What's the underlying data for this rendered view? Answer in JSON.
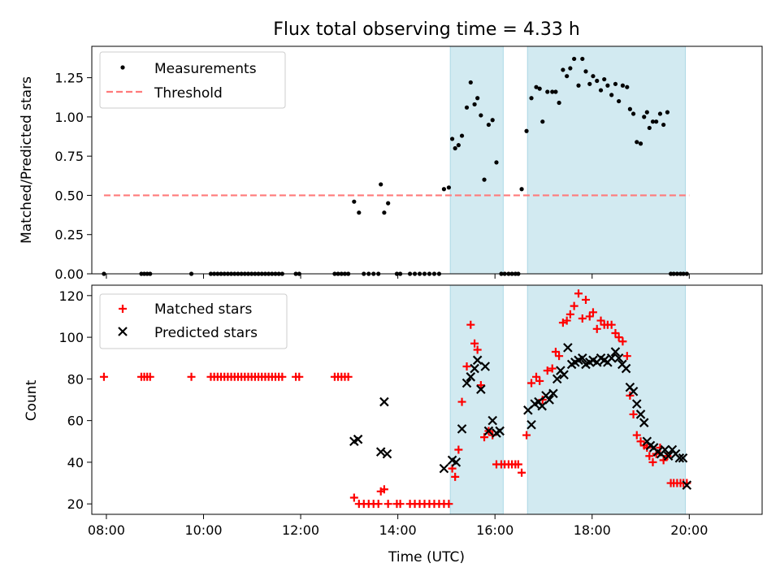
{
  "title": "Flux total observing time = 4.33 h",
  "colors": {
    "shade": "#add8e6",
    "measurement": "#000000",
    "threshold": "#ff7b7b",
    "matched": "#ff0000",
    "predicted": "#000000"
  },
  "chart_data": [
    {
      "type": "scatter",
      "panel": "top",
      "ylabel": "Matched/Predicted stars",
      "xlim": [
        7.7,
        21.5
      ],
      "ylim": [
        0,
        1.45
      ],
      "y_ticks": [
        0.0,
        0.25,
        0.5,
        0.75,
        1.0,
        1.25
      ],
      "y_tick_labels": [
        "0.00",
        "0.25",
        "0.50",
        "0.75",
        "1.00",
        "1.25"
      ],
      "x_ticks": [
        8,
        10,
        12,
        14,
        16,
        18,
        20
      ],
      "x_tick_labels": [
        "08:00",
        "10:00",
        "12:00",
        "14:00",
        "16:00",
        "18:00",
        "20:00"
      ],
      "show_x_tick_labels": false,
      "shaded_intervals": [
        [
          15.08,
          16.17
        ],
        [
          16.67,
          19.92
        ]
      ],
      "legend_position": "top-left",
      "series": [
        {
          "name": "Measurements",
          "kind": "points",
          "color": "#000000",
          "x": [
            7.95,
            8.72,
            8.78,
            8.84,
            8.9,
            9.75,
            10.15,
            10.22,
            10.29,
            10.36,
            10.43,
            10.5,
            10.57,
            10.64,
            10.71,
            10.78,
            10.85,
            10.92,
            10.99,
            11.06,
            11.13,
            11.2,
            11.27,
            11.34,
            11.41,
            11.48,
            11.55,
            11.62,
            11.9,
            11.97,
            12.7,
            12.77,
            12.84,
            12.91,
            12.98,
            13.1,
            13.2,
            13.3,
            13.4,
            13.5,
            13.6,
            13.65,
            13.72,
            13.8,
            13.98,
            14.05,
            14.25,
            14.35,
            14.45,
            14.55,
            14.65,
            14.75,
            14.85,
            14.95,
            15.05,
            15.12,
            15.18,
            15.25,
            15.32,
            15.42,
            15.5,
            15.58,
            15.64,
            15.71,
            15.78,
            15.87,
            15.95,
            16.03,
            16.13,
            16.2,
            16.28,
            16.35,
            16.42,
            16.48,
            16.55,
            16.65,
            16.75,
            16.85,
            16.92,
            16.98,
            17.08,
            17.18,
            17.25,
            17.32,
            17.4,
            17.48,
            17.55,
            17.63,
            17.72,
            17.8,
            17.87,
            17.95,
            18.02,
            18.1,
            18.18,
            18.25,
            18.32,
            18.4,
            18.48,
            18.55,
            18.63,
            18.72,
            18.78,
            18.85,
            18.92,
            19.0,
            19.07,
            19.13,
            19.18,
            19.25,
            19.32,
            19.4,
            19.47,
            19.55,
            19.62,
            19.68,
            19.75,
            19.82,
            19.88,
            19.95
          ],
          "y": [
            0,
            0,
            0,
            0,
            0,
            0,
            0,
            0,
            0,
            0,
            0,
            0,
            0,
            0,
            0,
            0,
            0,
            0,
            0,
            0,
            0,
            0,
            0,
            0,
            0,
            0,
            0,
            0,
            0,
            0,
            0,
            0,
            0,
            0,
            0,
            0.46,
            0.39,
            0,
            0,
            0,
            0,
            0.57,
            0.39,
            0.45,
            0,
            0,
            0,
            0,
            0,
            0,
            0,
            0,
            0,
            0.54,
            0.55,
            0.86,
            0.8,
            0.82,
            0.88,
            1.06,
            1.22,
            1.08,
            1.12,
            1.01,
            0.6,
            0.95,
            0.98,
            0.71,
            0,
            0,
            0,
            0,
            0,
            0,
            0.54,
            0.91,
            1.12,
            1.19,
            1.18,
            0.97,
            1.16,
            1.16,
            1.16,
            1.09,
            1.3,
            1.26,
            1.31,
            1.37,
            1.2,
            1.37,
            1.29,
            1.21,
            1.26,
            1.23,
            1.17,
            1.24,
            1.2,
            1.14,
            1.21,
            1.1,
            1.2,
            1.19,
            1.05,
            1.02,
            0.84,
            0.83,
            1.0,
            1.03,
            0.93,
            0.97,
            0.97,
            1.02,
            0.95,
            1.03,
            0,
            0,
            0,
            0,
            0,
            0
          ],
          "note_count": 120
        },
        {
          "name": "Threshold",
          "kind": "dashed-line",
          "color": "#ff7b7b",
          "x": [
            7.95,
            20.0
          ],
          "y": [
            0.5,
            0.5
          ]
        }
      ]
    },
    {
      "type": "scatter",
      "panel": "bottom",
      "xlabel": "Time (UTC)",
      "ylabel": "Count",
      "xlim": [
        7.7,
        21.5
      ],
      "ylim": [
        15,
        125
      ],
      "y_ticks": [
        20,
        40,
        60,
        80,
        100,
        120
      ],
      "y_tick_labels": [
        "20",
        "40",
        "60",
        "80",
        "100",
        "120"
      ],
      "x_ticks": [
        8,
        10,
        12,
        14,
        16,
        18,
        20
      ],
      "x_tick_labels": [
        "08:00",
        "10:00",
        "12:00",
        "14:00",
        "16:00",
        "18:00",
        "20:00"
      ],
      "show_x_tick_labels": true,
      "shaded_intervals": [
        [
          15.08,
          16.17
        ],
        [
          16.67,
          19.92
        ]
      ],
      "legend_position": "top-left",
      "series": [
        {
          "name": "Matched stars",
          "kind": "plus",
          "color": "#ff0000",
          "x": [
            7.95,
            8.72,
            8.78,
            8.84,
            8.9,
            9.75,
            10.15,
            10.22,
            10.29,
            10.36,
            10.43,
            10.5,
            10.57,
            10.64,
            10.71,
            10.78,
            10.85,
            10.92,
            10.99,
            11.06,
            11.13,
            11.2,
            11.27,
            11.34,
            11.41,
            11.48,
            11.55,
            11.62,
            11.9,
            11.97,
            12.7,
            12.77,
            12.84,
            12.91,
            12.98,
            13.1,
            13.2,
            13.3,
            13.4,
            13.5,
            13.6,
            13.65,
            13.72,
            13.8,
            13.98,
            14.05,
            14.25,
            14.35,
            14.45,
            14.55,
            14.65,
            14.75,
            14.85,
            14.95,
            15.05,
            15.12,
            15.18,
            15.25,
            15.32,
            15.42,
            15.5,
            15.58,
            15.64,
            15.71,
            15.78,
            15.87,
            15.95,
            16.03,
            16.13,
            16.2,
            16.28,
            16.35,
            16.42,
            16.48,
            16.55,
            16.65,
            16.75,
            16.85,
            16.92,
            16.98,
            17.08,
            17.18,
            17.25,
            17.32,
            17.4,
            17.48,
            17.55,
            17.63,
            17.72,
            17.8,
            17.87,
            17.95,
            18.02,
            18.1,
            18.18,
            18.25,
            18.32,
            18.4,
            18.48,
            18.55,
            18.63,
            18.72,
            18.78,
            18.85,
            18.92,
            19.0,
            19.07,
            19.13,
            19.18,
            19.25,
            19.32,
            19.4,
            19.47,
            19.55,
            19.62,
            19.68,
            19.75,
            19.82,
            19.88,
            19.95
          ],
          "y": [
            81,
            81,
            81,
            81,
            81,
            81,
            81,
            81,
            81,
            81,
            81,
            81,
            81,
            81,
            81,
            81,
            81,
            81,
            81,
            81,
            81,
            81,
            81,
            81,
            81,
            81,
            81,
            81,
            81,
            81,
            81,
            81,
            81,
            81,
            81,
            23,
            20,
            20,
            20,
            20,
            20,
            26,
            27,
            20,
            20,
            20,
            20,
            20,
            20,
            20,
            20,
            20,
            20,
            20,
            20,
            37,
            33,
            46,
            69,
            86,
            106,
            97,
            94,
            77,
            52,
            55,
            53,
            39,
            39,
            39,
            39,
            39,
            39,
            39,
            35,
            53,
            78,
            81,
            79,
            70,
            84,
            85,
            93,
            91,
            107,
            108,
            111,
            115,
            121,
            109,
            118,
            110,
            112,
            104,
            108,
            106,
            106,
            106,
            102,
            100,
            98,
            91,
            72,
            63,
            53,
            50,
            48,
            47,
            43,
            40,
            44,
            47,
            41,
            43,
            30,
            30,
            30,
            30,
            30,
            30
          ]
        },
        {
          "name": "Predicted stars",
          "kind": "cross",
          "color": "#000000",
          "x": [
            13.1,
            13.18,
            13.65,
            13.72,
            13.78,
            14.95,
            15.12,
            15.2,
            15.32,
            15.42,
            15.5,
            15.58,
            15.64,
            15.71,
            15.8,
            15.87,
            15.95,
            16.03,
            16.1,
            16.68,
            16.75,
            16.82,
            16.9,
            16.97,
            17.05,
            17.12,
            17.2,
            17.28,
            17.35,
            17.42,
            17.5,
            17.58,
            17.65,
            17.72,
            17.8,
            17.87,
            17.95,
            18.02,
            18.1,
            18.18,
            18.25,
            18.32,
            18.4,
            18.48,
            18.55,
            18.62,
            18.7,
            18.78,
            18.85,
            18.92,
            19.0,
            19.07,
            19.13,
            19.2,
            19.27,
            19.35,
            19.42,
            19.5,
            19.57,
            19.65,
            19.72,
            19.8,
            19.87,
            19.95
          ],
          "y": [
            50,
            51,
            45,
            69,
            44,
            37,
            41,
            40,
            56,
            78,
            81,
            85,
            89,
            75,
            86,
            55,
            60,
            54,
            55,
            65,
            58,
            68,
            69,
            67,
            72,
            70,
            73,
            80,
            84,
            82,
            95,
            87,
            88,
            89,
            90,
            87,
            88,
            89,
            88,
            90,
            89,
            88,
            90,
            93,
            90,
            87,
            85,
            76,
            74,
            68,
            63,
            59,
            50,
            48,
            47,
            45,
            44,
            46,
            43,
            46,
            44,
            42,
            42,
            29
          ]
        }
      ]
    }
  ]
}
